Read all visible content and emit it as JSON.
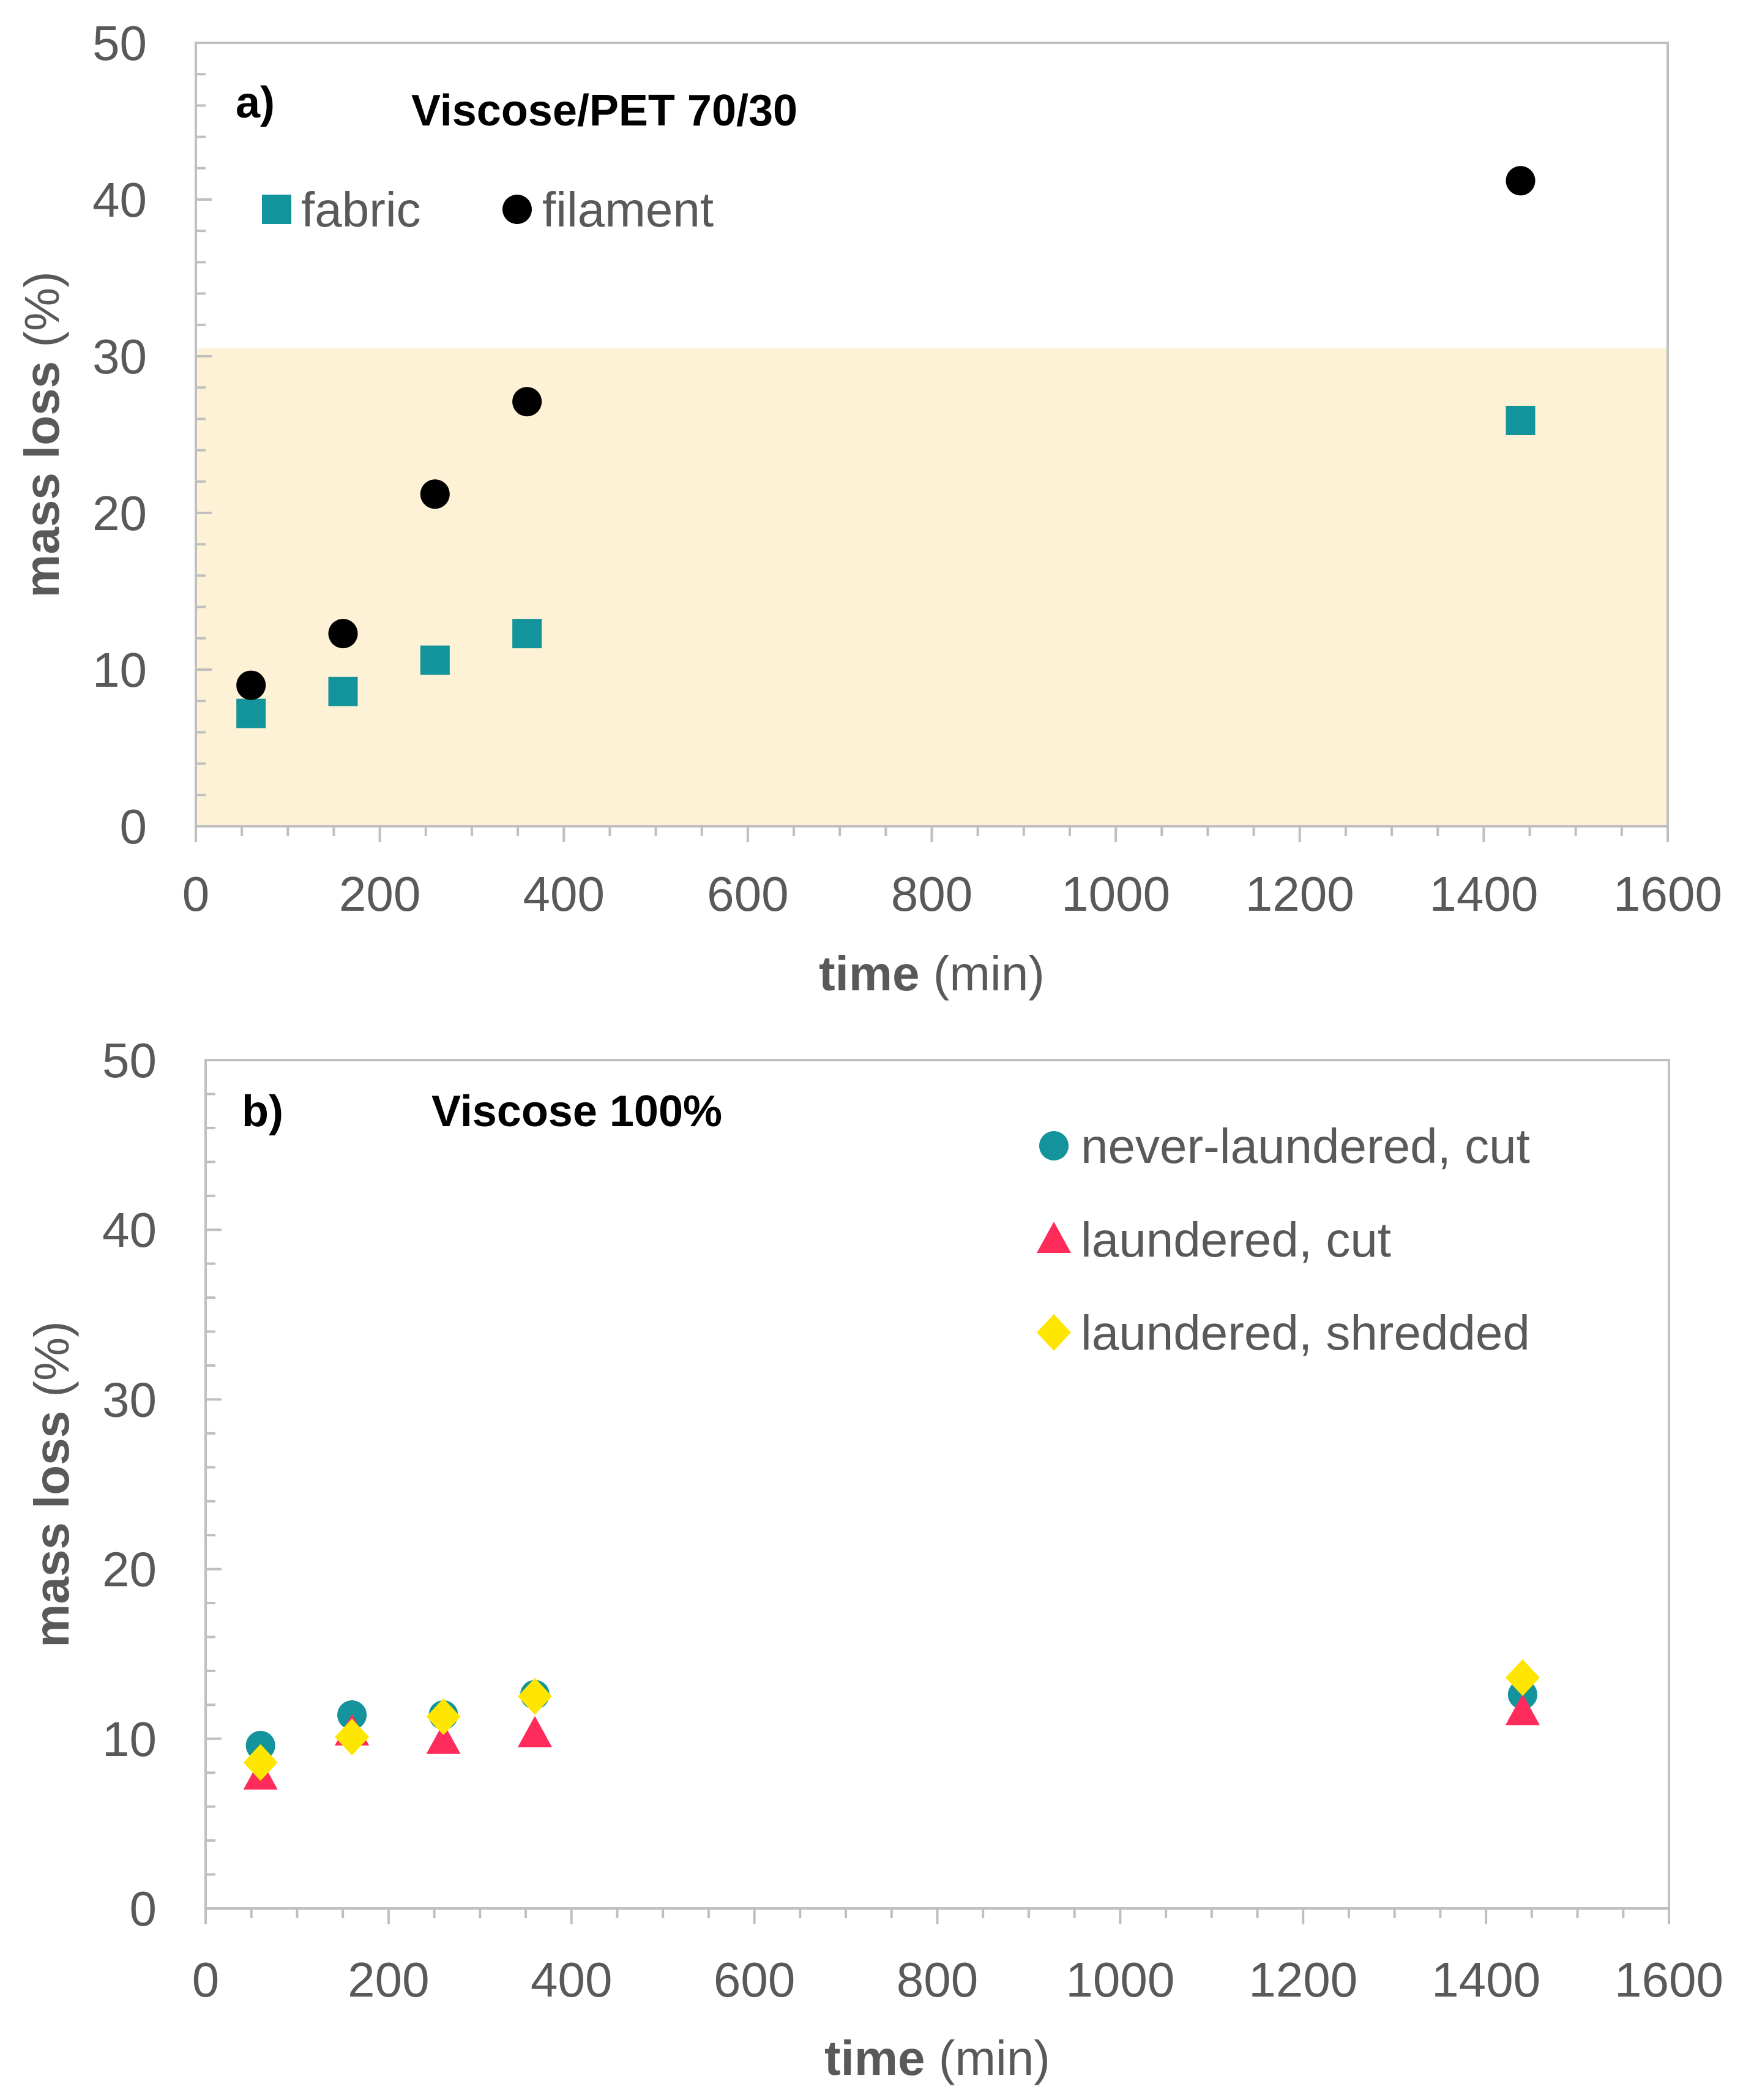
{
  "colors": {
    "fabric": "#13939b",
    "filament": "#000000",
    "never_laundered": "#13939b",
    "laundered_cut": "#ff2b5a",
    "laundered_shredded": "#ffe600",
    "shade": "#fdf2d6",
    "axis": "#bfbfbf",
    "text": "#595959"
  },
  "chart_data": [
    {
      "type": "scatter",
      "panel_label": "a)",
      "title": "Viscose/PET 70/30",
      "xlabel_bold": "time",
      "xlabel_unit": " (min)",
      "ylabel_bold": "mass loss",
      "ylabel_unit": " (%)",
      "xlim": [
        0,
        1600
      ],
      "ylim": [
        0,
        50
      ],
      "xticks": [
        0,
        200,
        400,
        600,
        800,
        1000,
        1200,
        1400,
        1600
      ],
      "yticks": [
        0,
        10,
        20,
        30,
        40,
        50
      ],
      "shaded_band": [
        0,
        30.5
      ],
      "legend_position": "top-left",
      "series": [
        {
          "name": "fabric",
          "marker": "square",
          "x": [
            60,
            160,
            260,
            360,
            1440
          ],
          "y": [
            7.2,
            8.6,
            10.6,
            12.3,
            25.9
          ]
        },
        {
          "name": "filament",
          "marker": "circle",
          "x": [
            60,
            160,
            260,
            360,
            1440
          ],
          "y": [
            9.0,
            12.3,
            21.2,
            27.1,
            41.2
          ]
        }
      ]
    },
    {
      "type": "scatter",
      "panel_label": "b)",
      "title": "Viscose 100%",
      "xlabel_bold": "time",
      "xlabel_unit": " (min)",
      "ylabel_bold": "mass loss",
      "ylabel_unit": " (%)",
      "xlim": [
        0,
        1600
      ],
      "ylim": [
        0,
        50
      ],
      "xticks": [
        0,
        200,
        400,
        600,
        800,
        1000,
        1200,
        1400,
        1600
      ],
      "yticks": [
        0,
        10,
        20,
        30,
        40,
        50
      ],
      "legend_position": "top-right",
      "series": [
        {
          "name": "never-laundered, cut",
          "marker": "circle",
          "x": [
            60,
            160,
            260,
            360,
            1440
          ],
          "y": [
            9.6,
            11.4,
            11.4,
            12.6,
            12.6
          ]
        },
        {
          "name": "laundered, cut",
          "marker": "triangle",
          "x": [
            60,
            160,
            260,
            360,
            1440
          ],
          "y": [
            7.8,
            10.4,
            9.9,
            10.3,
            11.6
          ]
        },
        {
          "name": "laundered, shredded",
          "marker": "diamond",
          "x": [
            60,
            160,
            260,
            360,
            1440
          ],
          "y": [
            8.6,
            10.1,
            11.3,
            12.5,
            13.6
          ]
        }
      ]
    }
  ]
}
